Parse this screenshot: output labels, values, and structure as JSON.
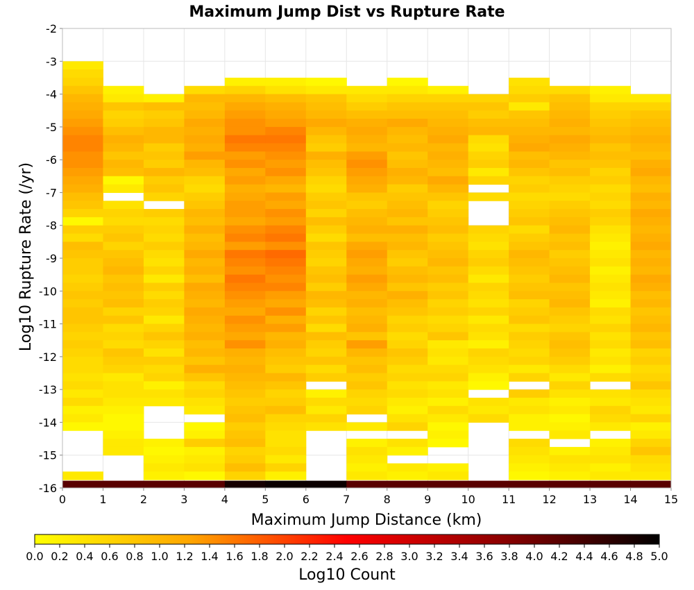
{
  "chart_data": {
    "type": "heatmap",
    "title": "Maximum Jump Dist vs Rupture Rate",
    "xlabel": "Maximum Jump Distance (km)",
    "ylabel": "Log10 Rupture Rate (/yr)",
    "xlim": [
      0,
      15
    ],
    "ylim": [
      -16,
      -2
    ],
    "x_ticks": [
      "0",
      "1",
      "2",
      "3",
      "4",
      "5",
      "6",
      "7",
      "8",
      "9",
      "10",
      "11",
      "12",
      "13",
      "14",
      "15"
    ],
    "y_ticks": [
      "-2",
      "-3",
      "-4",
      "-5",
      "-6",
      "-7",
      "-8",
      "-9",
      "-10",
      "-11",
      "-12",
      "-13",
      "-14",
      "-15",
      "-16"
    ],
    "x_bin_width_km": 1,
    "y_bin_height": 0.25,
    "grid": true,
    "colorbar": {
      "label": "Log10 Count",
      "min": 0.0,
      "max": 5.0,
      "ticks": [
        "0.0",
        "0.2",
        "0.4",
        "0.6",
        "0.8",
        "1.0",
        "1.2",
        "1.4",
        "1.6",
        "1.8",
        "2.0",
        "2.2",
        "2.4",
        "2.6",
        "2.8",
        "3.0",
        "3.2",
        "3.4",
        "3.6",
        "3.8",
        "4.0",
        "4.2",
        "4.4",
        "4.6",
        "4.8",
        "5.0"
      ],
      "colors": [
        "#ffff00",
        "#ffa500",
        "#ff0000",
        "#8b0000",
        "#000000"
      ]
    },
    "columns": [
      {
        "x_start": 0,
        "y_top": -3.0,
        "values": [
          0.3,
          0.5,
          0.6,
          0.8,
          1.0,
          1.1,
          1.2,
          1.3,
          1.4,
          1.5,
          1.5,
          1.4,
          1.4,
          1.3,
          1.2,
          1.1,
          0.9,
          0.8,
          0.6,
          0.1,
          0.7,
          0.5,
          0.9,
          0.8,
          0.7,
          0.7,
          0.6,
          0.7,
          0.8,
          0.7,
          0.8,
          0.8,
          0.7,
          0.6,
          0.7,
          0.6,
          0.5,
          0.5,
          0.4,
          0.5,
          0.3,
          0.5,
          0.2,
          0.3,
          0.1,
          null,
          null,
          null,
          null,
          null,
          0.3,
          null,
          null,
          null,
          null
        ]
      },
      {
        "x_start": 1,
        "y_top": -3.75,
        "values": [
          0.2,
          0.3,
          0.8,
          0.6,
          0.7,
          0.9,
          1.1,
          1.0,
          0.8,
          1.0,
          0.9,
          0.1,
          0.3,
          null,
          0.4,
          0.6,
          0.5,
          0.7,
          0.8,
          0.6,
          0.8,
          0.9,
          1.0,
          0.8,
          0.9,
          0.8,
          0.9,
          0.6,
          0.8,
          0.5,
          0.6,
          0.5,
          0.8,
          0.7,
          0.6,
          0.3,
          0.4,
          0.4,
          0.3,
          0.2,
          0.1,
          0.1,
          0.2,
          0.3,
          0.3,
          null,
          null,
          null,
          null,
          null,
          null,
          null,
          null,
          null
        ]
      },
      {
        "x_start": 2,
        "y_top": -4.0,
        "values": [
          0.2,
          0.9,
          0.7,
          0.8,
          1.0,
          1.0,
          0.7,
          0.8,
          0.7,
          1.0,
          0.7,
          0.8,
          0.6,
          null,
          0.7,
          0.5,
          0.6,
          0.5,
          0.7,
          0.5,
          0.4,
          0.6,
          0.3,
          0.7,
          0.5,
          0.7,
          0.6,
          0.3,
          0.6,
          0.8,
          0.6,
          0.4,
          0.7,
          0.5,
          0.6,
          0.2,
          0.4,
          0.3,
          null,
          null,
          null,
          null,
          0.2,
          0.1,
          0.2,
          0.3,
          0.2,
          0.6,
          null,
          null,
          0.1,
          0.3,
          null,
          null
        ]
      },
      {
        "x_start": 3,
        "y_top": -3.75,
        "values": [
          0.5,
          1.0,
          0.9,
          1.0,
          1.2,
          1.1,
          1.2,
          1.1,
          1.3,
          1.0,
          0.9,
          0.6,
          0.5,
          0.7,
          0.8,
          1.0,
          0.9,
          1.1,
          0.9,
          1.0,
          1.2,
          1.0,
          1.1,
          0.9,
          1.2,
          1.1,
          1.0,
          1.2,
          1.1,
          1.0,
          1.1,
          0.9,
          1.0,
          0.8,
          1.1,
          0.8,
          0.5,
          0.6,
          0.4,
          0.3,
          null,
          0.1,
          0.2,
          0.7,
          0.2,
          0.3,
          0.4,
          0.1,
          null,
          null,
          0.2,
          null,
          null
        ]
      },
      {
        "x_start": 4,
        "y_top": -3.5,
        "values": [
          0.2,
          0.6,
          1.0,
          1.2,
          1.3,
          1.4,
          1.4,
          1.6,
          1.5,
          1.3,
          1.4,
          1.2,
          1.3,
          1.1,
          1.2,
          1.3,
          1.3,
          1.2,
          1.4,
          1.5,
          1.3,
          1.6,
          1.5,
          1.4,
          1.6,
          1.5,
          1.4,
          1.3,
          1.2,
          1.4,
          1.3,
          1.2,
          1.4,
          1.1,
          1.0,
          1.1,
          1.0,
          0.9,
          0.8,
          0.7,
          0.8,
          0.9,
          0.7,
          0.8,
          0.9,
          0.6,
          0.7,
          0.9,
          0.6,
          0.4,
          0.6,
          0.5,
          0.2
        ]
      },
      {
        "x_start": 5,
        "y_top": -3.5,
        "values": [
          0.2,
          0.4,
          0.9,
          1.1,
          1.2,
          1.3,
          1.5,
          1.6,
          1.5,
          1.4,
          1.3,
          1.4,
          1.2,
          1.0,
          1.3,
          1.2,
          1.4,
          1.3,
          1.5,
          1.6,
          1.4,
          1.7,
          1.6,
          1.5,
          1.4,
          1.5,
          1.3,
          1.2,
          1.4,
          1.1,
          1.3,
          1.0,
          1.1,
          0.9,
          0.8,
          0.7,
          1.0,
          0.8,
          0.6,
          0.7,
          0.9,
          0.6,
          0.5,
          0.4,
          0.4,
          0.5,
          0.3,
          0.6,
          0.2,
          0.3,
          0.4,
          0.1
        ]
      },
      {
        "x_start": 6,
        "y_top": -3.5,
        "values": [
          0.1,
          0.3,
          0.8,
          0.9,
          1.0,
          1.2,
          1.0,
          0.8,
          0.7,
          1.1,
          0.9,
          0.8,
          0.6,
          0.5,
          0.7,
          0.8,
          0.6,
          0.9,
          0.7,
          0.5,
          0.8,
          0.7,
          0.6,
          0.8,
          0.9,
          0.7,
          1.0,
          0.9,
          0.6,
          0.8,
          0.5,
          0.9,
          0.7,
          0.6,
          0.8,
          0.5,
          0.7,
          null,
          0.2,
          0.5,
          0.3,
          0.6,
          0.4
        ]
      },
      {
        "x_start": 7,
        "y_top": -3.75,
        "values": [
          0.3,
          0.5,
          0.7,
          0.9,
          1.1,
          1.2,
          1.1,
          1.0,
          1.3,
          1.4,
          1.3,
          1.2,
          1.1,
          0.8,
          0.7,
          0.9,
          1.0,
          1.1,
          0.9,
          1.2,
          1.3,
          1.2,
          1.1,
          1.3,
          1.2,
          1.0,
          1.1,
          0.9,
          1.0,
          1.1,
          0.8,
          1.3,
          1.0,
          0.8,
          0.9,
          0.7,
          0.8,
          0.6,
          0.5,
          0.6,
          null,
          0.3,
          null,
          0.2,
          0.4,
          0.3,
          0.2,
          0.3,
          null,
          null,
          0.3,
          0.2,
          null
        ]
      },
      {
        "x_start": 8,
        "y_top": -3.5,
        "values": [
          0.1,
          0.3,
          0.6,
          0.8,
          0.9,
          1.2,
          1.0,
          0.9,
          1.0,
          0.8,
          0.9,
          1.1,
          1.0,
          0.7,
          0.8,
          0.9,
          1.0,
          0.8,
          1.1,
          0.9,
          1.0,
          0.8,
          0.7,
          0.9,
          1.0,
          0.8,
          1.1,
          0.9,
          0.8,
          0.6,
          0.7,
          0.5,
          0.6,
          0.8,
          0.7,
          0.5,
          0.6,
          0.4,
          0.5,
          0.3,
          0.2,
          0.4,
          0.6,
          null,
          0.4,
          0.2,
          null,
          0.3,
          0.2,
          null,
          0.3,
          0.2,
          null
        ]
      },
      {
        "x_start": 9,
        "y_top": -3.75,
        "values": [
          0.2,
          0.6,
          0.8,
          0.9,
          1.0,
          1.1,
          1.2,
          1.0,
          1.1,
          1.0,
          0.9,
          1.2,
          1.0,
          0.8,
          0.6,
          0.7,
          0.8,
          0.9,
          0.7,
          0.8,
          0.9,
          1.0,
          0.8,
          0.9,
          0.7,
          0.8,
          0.6,
          0.7,
          0.5,
          0.6,
          0.8,
          0.3,
          0.4,
          0.3,
          0.5,
          0.6,
          0.3,
          0.4,
          0.2,
          0.5,
          0.3,
          0.1,
          0.2,
          0.1,
          null,
          null,
          0.2,
          0.3,
          null,
          0.3,
          0.2,
          null
        ]
      },
      {
        "x_start": 10,
        "y_top": -4.0,
        "values": [
          0.6,
          0.8,
          0.7,
          0.9,
          1.0,
          0.5,
          0.4,
          0.6,
          0.7,
          0.3,
          0.6,
          null,
          0.5,
          null,
          null,
          null,
          0.6,
          0.5,
          0.4,
          0.6,
          0.7,
          0.5,
          0.3,
          0.6,
          0.5,
          0.4,
          0.6,
          0.3,
          0.5,
          0.4,
          0.2,
          0.6,
          0.5,
          0.4,
          0.2,
          0.1,
          null,
          0.4,
          0.3,
          0.5
        ]
      },
      {
        "x_start": 11,
        "y_top": -3.5,
        "values": [
          0.4,
          0.5,
          0.7,
          0.3,
          0.8,
          0.9,
          1.0,
          1.1,
          1.2,
          0.9,
          1.0,
          0.8,
          0.6,
          0.7,
          0.5,
          0.6,
          0.7,
          0.8,
          0.5,
          0.7,
          0.8,
          1.0,
          0.9,
          0.8,
          0.7,
          0.8,
          0.9,
          0.6,
          0.7,
          0.8,
          0.5,
          0.7,
          0.6,
          0.5,
          0.6,
          0.3,
          0.6,
          null,
          0.7,
          0.3,
          0.4,
          0.2,
          0.2,
          null,
          0.5,
          0.4,
          0.3,
          0.2,
          0.1,
          0.2,
          0.3,
          0.2
        ]
      },
      {
        "x_start": 12,
        "y_top": -3.75,
        "values": [
          0.5,
          0.8,
          0.9,
          1.0,
          1.1,
          1.0,
          1.2,
          1.1,
          1.0,
          0.8,
          0.9,
          0.7,
          0.6,
          0.5,
          0.7,
          0.8,
          0.9,
          1.0,
          0.8,
          0.9,
          0.7,
          0.8,
          0.9,
          1.0,
          0.8,
          0.9,
          1.0,
          0.8,
          0.7,
          0.6,
          0.8,
          0.9,
          0.8,
          0.7,
          0.5,
          0.3,
          0.6,
          0.4,
          0.2,
          0.3,
          0.1,
          0.2,
          0.3,
          null,
          0.2,
          0.4,
          0.3,
          0.2,
          null,
          null,
          0.3,
          0.2
        ]
      },
      {
        "x_start": 13,
        "y_top": -3.75,
        "values": [
          0.2,
          0.3,
          0.6,
          0.7,
          0.8,
          0.9,
          1.0,
          0.8,
          0.9,
          0.8,
          0.6,
          0.7,
          0.5,
          0.6,
          0.5,
          0.7,
          0.6,
          0.4,
          0.3,
          0.2,
          0.3,
          0.4,
          0.2,
          0.3,
          0.4,
          0.3,
          0.2,
          0.5,
          0.4,
          0.6,
          0.4,
          0.5,
          0.3,
          0.4,
          0.2,
          0.5,
          null,
          0.4,
          0.3,
          0.6,
          0.5,
          0.3,
          null,
          0.2,
          0.3,
          0.4,
          0.2,
          0.3,
          0.2,
          0.3,
          0.2,
          0.3
        ]
      },
      {
        "x_start": 14,
        "y_top": -4.0,
        "values": [
          0.3,
          0.6,
          0.8,
          0.9,
          1.0,
          1.1,
          1.0,
          0.9,
          1.1,
          1.2,
          1.0,
          0.9,
          1.1,
          1.0,
          1.2,
          1.1,
          1.0,
          1.1,
          1.2,
          1.0,
          1.1,
          1.0,
          1.2,
          1.1,
          0.9,
          1.0,
          0.8,
          0.9,
          1.0,
          0.8,
          0.9,
          0.6,
          0.7,
          0.5,
          0.6,
          0.8,
          0.5,
          0.4,
          0.3,
          0.6,
          0.2,
          0.3,
          0.6,
          0.8,
          0.5,
          0.4,
          0.3,
          0.2,
          0.2,
          0.3,
          0.2
        ]
      }
    ],
    "bottom_row": {
      "y": -16,
      "values": [
        4.2,
        4.2,
        4.2,
        4.2,
        4.8,
        4.9,
        4.9,
        4.2,
        4.2,
        4.2,
        4.2,
        4.2,
        4.2,
        4.2,
        4.2
      ]
    }
  }
}
